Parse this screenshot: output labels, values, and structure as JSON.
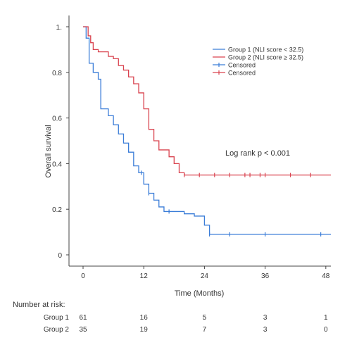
{
  "chart_data": {
    "type": "line",
    "title": "",
    "xlabel": "Time (Months)",
    "ylabel": "Overall survival",
    "xlim": [
      0,
      49
    ],
    "ylim": [
      0,
      1.0
    ],
    "x_ticks": [
      0,
      12,
      24,
      36,
      48
    ],
    "y_ticks": [
      0,
      0.2,
      0.4,
      0.6,
      0.8,
      1.0
    ],
    "y_tick_labels": [
      "0",
      "0.2",
      "0.4",
      "0.6",
      "0.8",
      "1."
    ],
    "grid": false,
    "legend_position": "top-right",
    "legend": [
      {
        "label": "Group 1 (NLI score < 32.5)",
        "color": "#3b7dd8",
        "kind": "line"
      },
      {
        "label": "Group 2 (NLI score ≥ 32.5)",
        "color": "#d9434f",
        "kind": "line"
      },
      {
        "label": "Censored",
        "color": "#3b7dd8",
        "kind": "censor"
      },
      {
        "label": "Censored",
        "color": "#d9434f",
        "kind": "censor"
      }
    ],
    "annotation": "Log rank p < 0.001",
    "series": [
      {
        "name": "Group 1 (NLI score < 32.5)",
        "color": "#3b7dd8",
        "steps": [
          [
            0,
            1.0
          ],
          [
            0.6,
            0.95
          ],
          [
            1.2,
            0.84
          ],
          [
            2,
            0.8
          ],
          [
            3,
            0.77
          ],
          [
            3.5,
            0.64
          ],
          [
            5,
            0.61
          ],
          [
            6,
            0.57
          ],
          [
            7,
            0.53
          ],
          [
            8,
            0.49
          ],
          [
            9,
            0.45
          ],
          [
            10,
            0.39
          ],
          [
            11,
            0.36
          ],
          [
            12,
            0.31
          ],
          [
            13,
            0.27
          ],
          [
            14,
            0.24
          ],
          [
            15,
            0.21
          ],
          [
            16,
            0.19
          ],
          [
            20,
            0.18
          ],
          [
            22,
            0.17
          ],
          [
            24,
            0.13
          ],
          [
            25,
            0.09
          ],
          [
            49,
            0.09
          ]
        ],
        "censored": [
          [
            11.5,
            0.36
          ],
          [
            13,
            0.27
          ],
          [
            17,
            0.19
          ],
          [
            25,
            0.09
          ],
          [
            29,
            0.09
          ],
          [
            36,
            0.09
          ],
          [
            47,
            0.09
          ]
        ]
      },
      {
        "name": "Group 2 (NLI score ≥ 32.5)",
        "color": "#d9434f",
        "steps": [
          [
            0,
            1.0
          ],
          [
            1,
            0.96
          ],
          [
            1.5,
            0.93
          ],
          [
            2,
            0.9
          ],
          [
            3,
            0.89
          ],
          [
            4,
            0.89
          ],
          [
            5,
            0.87
          ],
          [
            6,
            0.86
          ],
          [
            7,
            0.83
          ],
          [
            8,
            0.81
          ],
          [
            9,
            0.78
          ],
          [
            10,
            0.75
          ],
          [
            11,
            0.71
          ],
          [
            12,
            0.64
          ],
          [
            13,
            0.55
          ],
          [
            14,
            0.5
          ],
          [
            15,
            0.46
          ],
          [
            17,
            0.43
          ],
          [
            18,
            0.4
          ],
          [
            19,
            0.36
          ],
          [
            20,
            0.35
          ],
          [
            49,
            0.35
          ]
        ],
        "censored": [
          [
            20,
            0.35
          ],
          [
            23,
            0.35
          ],
          [
            26,
            0.35
          ],
          [
            29,
            0.35
          ],
          [
            32,
            0.35
          ],
          [
            33,
            0.35
          ],
          [
            35,
            0.35
          ],
          [
            36,
            0.35
          ],
          [
            41,
            0.35
          ],
          [
            45,
            0.35
          ]
        ]
      }
    ]
  },
  "risk_table": {
    "title": "Number at risk:",
    "times": [
      0,
      12,
      24,
      36,
      48
    ],
    "rows": [
      {
        "label": "Group 1",
        "values": [
          "61",
          "16",
          "5",
          "3",
          "1"
        ]
      },
      {
        "label": "Group 2",
        "values": [
          "35",
          "19",
          "7",
          "3",
          "0"
        ]
      }
    ]
  }
}
